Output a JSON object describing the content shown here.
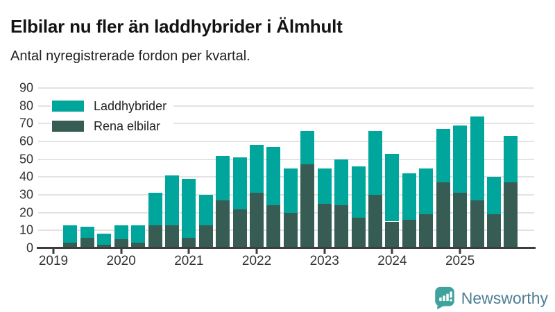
{
  "header": {
    "title": "Elbilar nu fler än laddhybrider i Älmhult",
    "subtitle": "Antal nyregistrerade fordon per kvartal."
  },
  "legend": {
    "items": [
      {
        "label": "Laddhybrider",
        "color": "#00a69b"
      },
      {
        "label": "Rena elbilar",
        "color": "#365c54"
      }
    ]
  },
  "footer": {
    "brand": "Newsworthy"
  },
  "colors": {
    "laddhybrider": "#00a69b",
    "rena_elbilar": "#365c54",
    "gridline": "#e3e3e3",
    "axis": "#3d3d3d",
    "logo_icon": "#3fa29c",
    "logo_text": "#4d7d95"
  },
  "chart_data": {
    "type": "bar",
    "stacked": true,
    "title": "Elbilar nu fler än laddhybrider i Älmhult",
    "subtitle": "Antal nyregistrerade fordon per kvartal.",
    "xlabel": "",
    "ylabel": "",
    "ylim": [
      0,
      90
    ],
    "yticks": [
      0,
      10,
      20,
      30,
      40,
      50,
      60,
      70,
      80,
      90
    ],
    "grid": true,
    "legend_position": "top-left-inside",
    "categories": [
      "2019-Q1",
      "2019-Q2",
      "2019-Q3",
      "2019-Q4",
      "2020-Q1",
      "2020-Q2",
      "2020-Q3",
      "2020-Q4",
      "2021-Q1",
      "2021-Q2",
      "2021-Q3",
      "2021-Q4",
      "2022-Q1",
      "2022-Q2",
      "2022-Q3",
      "2022-Q4",
      "2023-Q1",
      "2023-Q2",
      "2023-Q3",
      "2023-Q4",
      "2024-Q1",
      "2024-Q2",
      "2024-Q3",
      "2024-Q4",
      "2025-Q1",
      "2025-Q2",
      "2025-Q3",
      "2025-Q4"
    ],
    "x_year_labels": [
      "2019",
      "2020",
      "2021",
      "2022",
      "2023",
      "2024",
      "2025"
    ],
    "series": [
      {
        "name": "Rena elbilar",
        "color": "#365c54",
        "stack_position": "bottom",
        "values": [
          0,
          3,
          6,
          2,
          5,
          3,
          13,
          13,
          6,
          13,
          27,
          22,
          31,
          24,
          20,
          47,
          25,
          24,
          17,
          30,
          15,
          16,
          19,
          37,
          31,
          27,
          19,
          37
        ]
      },
      {
        "name": "Laddhybrider",
        "color": "#00a69b",
        "stack_position": "top",
        "values": [
          0,
          10,
          6,
          6,
          8,
          10,
          18,
          28,
          33,
          17,
          25,
          29,
          27,
          33,
          25,
          19,
          20,
          26,
          29,
          36,
          38,
          26,
          26,
          30,
          38,
          47,
          21,
          26
        ]
      }
    ]
  }
}
